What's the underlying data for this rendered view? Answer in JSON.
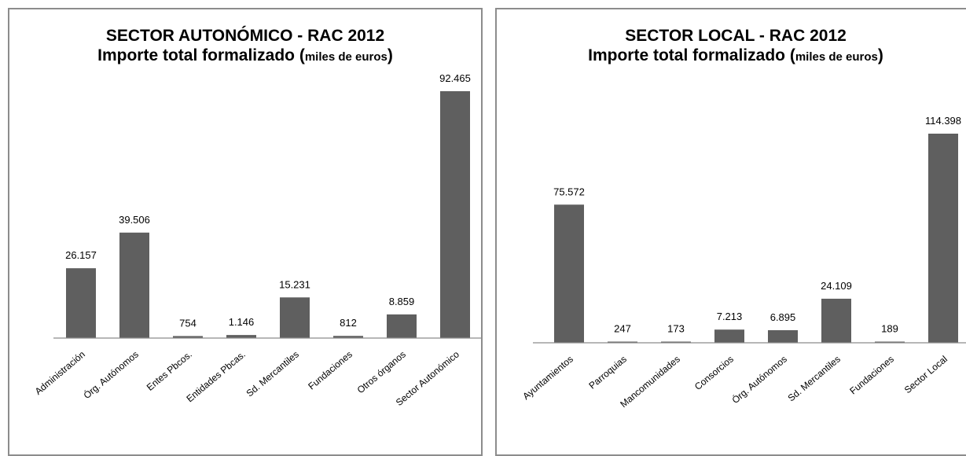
{
  "chart_data": [
    {
      "type": "bar",
      "title": "SECTOR AUTONÓMICO - RAC 2012",
      "subtitle": "Importe total formalizado",
      "subtitle_unit": "miles de euros",
      "categories": [
        "Administración",
        "Órg. Autónomos",
        "Entes Pbcos.",
        "Entidades Pbcas.",
        "Sd. Mercantiles",
        "Fundaciones",
        "Otros órganos",
        "Sector Autonómico"
      ],
      "values": [
        26157,
        39506,
        754,
        1146,
        15231,
        812,
        8859,
        92465
      ],
      "value_labels": [
        "26.157",
        "39.506",
        "754",
        "1.146",
        "15.231",
        "812",
        "8.859",
        "92.465"
      ],
      "xlabel": "",
      "ylabel": "",
      "ylim": [
        0,
        92465
      ],
      "grid": false,
      "bar_color": "#5f5f5f"
    },
    {
      "type": "bar",
      "title": "SECTOR LOCAL - RAC 2012",
      "subtitle": "Importe total formalizado",
      "subtitle_unit": "miles de euros",
      "categories": [
        "Ayuntamientos",
        "Parroquias",
        "Mancomunidades",
        "Consorcios",
        "Órg. Autónomos",
        "Sd. Mercantiles",
        "Fundaciones",
        "Sector Local"
      ],
      "values": [
        75572,
        247,
        173,
        7213,
        6895,
        24109,
        189,
        114398
      ],
      "value_labels": [
        "75.572",
        "247",
        "173",
        "7.213",
        "6.895",
        "24.109",
        "189",
        "114.398"
      ],
      "xlabel": "",
      "ylabel": "",
      "ylim": [
        0,
        114398
      ],
      "grid": false,
      "bar_color": "#5f5f5f"
    }
  ]
}
